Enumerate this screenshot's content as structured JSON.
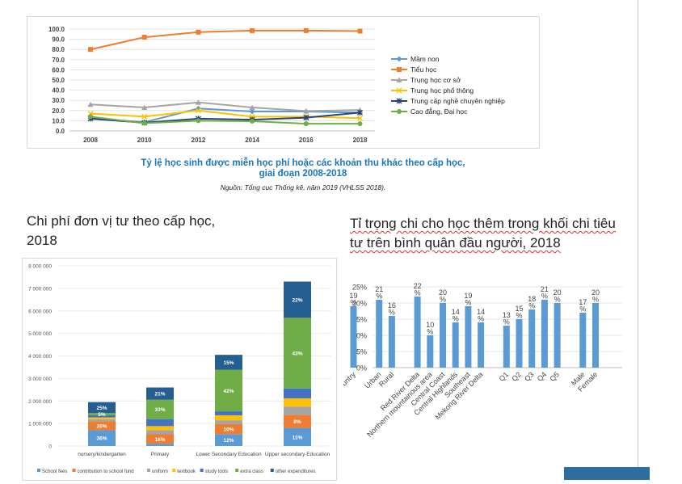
{
  "line_chart_title_line1": "Tỷ lệ học sinh được miễn học phí hoặc các khoản thu khác theo cấp học,",
  "line_chart_title_line2": "giai đoạn 2008-2018",
  "line_chart_source": "Nguồn: Tổng cục Thống kê, năm 2019 (VHLSS 2018).",
  "stacked_heading": "Chi phí đơn vị tư theo cấp học, 2018",
  "share_heading": "Tỉ trọng chi cho học thêm trong khối chi tiêu tư trên bình quân đầu người, 2018",
  "colors": {
    "mam_non": "#5b9bd5",
    "tieu_hoc": "#ed7d31",
    "trung_hoc_co_so": "#a5a5a5",
    "trung_hoc_pho_thong": "#ffc000",
    "trung_cap": "#264478",
    "cao_dang": "#70ad47",
    "school_fees": "#5b9bd5",
    "contribution": "#ed7d31",
    "uniform": "#a5a5a5",
    "textbook": "#ffc000",
    "study_tools": "#4472c4",
    "extra_class": "#70ad47",
    "other": "#255e91",
    "share_bar": "#5b9bd5"
  },
  "chart_data": [
    {
      "type": "line",
      "title": "Tỷ lệ học sinh được miễn học phí hoặc các khoản thu khác theo cấp học, giai đoạn 2008-2018",
      "x": [
        "2008",
        "2010",
        "2012",
        "2014",
        "2016",
        "2018"
      ],
      "ylim": [
        0,
        100
      ],
      "y_ticks": [
        "100.0",
        "90.0",
        "80.0",
        "70.0",
        "60.0",
        "50.0",
        "40.0",
        "30.0",
        "20.0",
        "10.0",
        "0.0"
      ],
      "series": [
        {
          "name": "Mầm non",
          "values": [
            12.5,
            8.5,
            22,
            19,
            19,
            18
          ]
        },
        {
          "name": "Tiểu học",
          "values": [
            80,
            92,
            97,
            98.5,
            98.5,
            98
          ]
        },
        {
          "name": "Trung học cơ sở",
          "values": [
            26,
            23,
            28,
            23,
            19.5,
            20.5
          ]
        },
        {
          "name": "Trung học phổ thông",
          "values": [
            17,
            14,
            20,
            14,
            14,
            12.5
          ]
        },
        {
          "name": "Trung cấp nghề chuyên nghiệp",
          "values": [
            12,
            8,
            12,
            11,
            13,
            18
          ]
        },
        {
          "name": "Cao đẳng, Đại học",
          "values": [
            14,
            7.5,
            10,
            9.5,
            7,
            7
          ]
        }
      ],
      "legend": "right"
    },
    {
      "type": "bar",
      "stacked": true,
      "categories": [
        "nursery/kindergarten",
        "Primary",
        "Lower Secondary Education",
        "Upper secondary Education"
      ],
      "totals": [
        1950000,
        2600000,
        4400000,
        7300000
      ],
      "ylim": [
        0,
        8000000
      ],
      "y_ticks": [
        "8 000 000",
        "7 000 000",
        "6 000 000",
        "5 000 000",
        "4 000 000",
        "3 000 000",
        "2 000 000",
        "1 000 000",
        "0"
      ],
      "series": [
        {
          "name": "School fees",
          "shares": [
            0.36,
            0.04,
            0.12,
            0.11
          ]
        },
        {
          "name": "contribution to school fund",
          "shares": [
            0.2,
            0.16,
            0.1,
            0.08
          ]
        },
        {
          "name": "uniform",
          "shares": [
            0.05,
            0.07,
            0.04,
            0.05
          ]
        },
        {
          "name": "textbook",
          "shares": [
            0.04,
            0.07,
            0.05,
            0.05
          ]
        },
        {
          "name": "study tools",
          "shares": [
            0.05,
            0.12,
            0.04,
            0.06
          ]
        },
        {
          "name": "extra class",
          "shares": [
            0.05,
            0.33,
            0.42,
            0.43
          ]
        },
        {
          "name": "other expenditures",
          "shares": [
            0.25,
            0.21,
            0.15,
            0.22
          ]
        }
      ],
      "labels": [
        {
          "bar": 0,
          "series": 0,
          "text": "36%"
        },
        {
          "bar": 0,
          "series": 1,
          "text": "20%"
        },
        {
          "bar": 0,
          "series": 5,
          "text": "5%"
        },
        {
          "bar": 0,
          "series": 6,
          "text": "25%"
        },
        {
          "bar": 1,
          "series": 1,
          "text": "16%"
        },
        {
          "bar": 1,
          "series": 5,
          "text": "33%"
        },
        {
          "bar": 1,
          "series": 6,
          "text": "21%"
        },
        {
          "bar": 2,
          "series": 0,
          "text": "12%"
        },
        {
          "bar": 2,
          "series": 1,
          "text": "10%"
        },
        {
          "bar": 2,
          "series": 5,
          "text": "42%"
        },
        {
          "bar": 2,
          "series": 6,
          "text": "15%"
        },
        {
          "bar": 3,
          "series": 0,
          "text": "11%"
        },
        {
          "bar": 3,
          "series": 1,
          "text": "8%"
        },
        {
          "bar": 3,
          "series": 5,
          "text": "43%"
        },
        {
          "bar": 3,
          "series": 6,
          "text": "22%"
        }
      ],
      "legend": "bottom"
    },
    {
      "type": "bar",
      "ylim": [
        0,
        25
      ],
      "y_ticks": [
        "25%",
        "20%",
        "15%",
        "10%",
        "5%",
        "0%"
      ],
      "groups": [
        {
          "categories": [
            "Whole country"
          ],
          "values": [
            19
          ],
          "labels": [
            "19 %"
          ]
        },
        {
          "categories": [
            "Urban",
            "Rural"
          ],
          "values": [
            21,
            16
          ],
          "labels": [
            "21 %",
            "16 %"
          ]
        },
        {
          "categories": [
            "Red River Delta",
            "Northern mountainous area",
            "Central Coast",
            "Central Highlands",
            "Southeast",
            "Mekong River Delta"
          ],
          "values": [
            22,
            10,
            20,
            14,
            19,
            14
          ],
          "labels": [
            "22 %",
            "10 %",
            "20 %",
            "14 %",
            "19 %",
            "14 %"
          ]
        },
        {
          "categories": [
            "Q1",
            "Q2",
            "Q3",
            "Q4",
            "Q5"
          ],
          "values": [
            13,
            15,
            18,
            21,
            20
          ],
          "labels": [
            "13 %",
            "15 %",
            "18 %",
            "21 %",
            "20 %"
          ]
        },
        {
          "categories": [
            "Male",
            "Female"
          ],
          "values": [
            17,
            20
          ],
          "labels": [
            "17 %",
            "20 %"
          ]
        }
      ]
    }
  ]
}
